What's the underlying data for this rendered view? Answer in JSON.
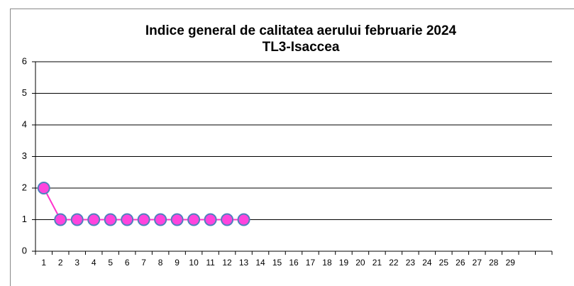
{
  "chart_data": {
    "type": "line",
    "title": "Indice general de calitatea aerului  februarie 2024",
    "subtitle": "TL3-Isaccea",
    "categories": [
      "1",
      "2",
      "3",
      "4",
      "5",
      "6",
      "7",
      "8",
      "9",
      "10",
      "11",
      "12",
      "13",
      "14",
      "15",
      "16",
      "17",
      "18",
      "19",
      "20",
      "21",
      "22",
      "23",
      "24",
      "25",
      "26",
      "27",
      "28",
      "29",
      null,
      null
    ],
    "series": [
      {
        "color": "#ff33cc",
        "marker_color": "#ff44dd",
        "marker_edge": "#4f81bd",
        "values": [
          2,
          1,
          1,
          1,
          1,
          1,
          1,
          1,
          1,
          1,
          1,
          1,
          1,
          null,
          null,
          null,
          null,
          null,
          null,
          null,
          null,
          null,
          null,
          null,
          null,
          null,
          null,
          null,
          null,
          null,
          null
        ]
      }
    ],
    "ylim": [
      0,
      6
    ],
    "yticks": [
      0,
      1,
      2,
      3,
      4,
      5,
      6
    ],
    "grid": true
  }
}
